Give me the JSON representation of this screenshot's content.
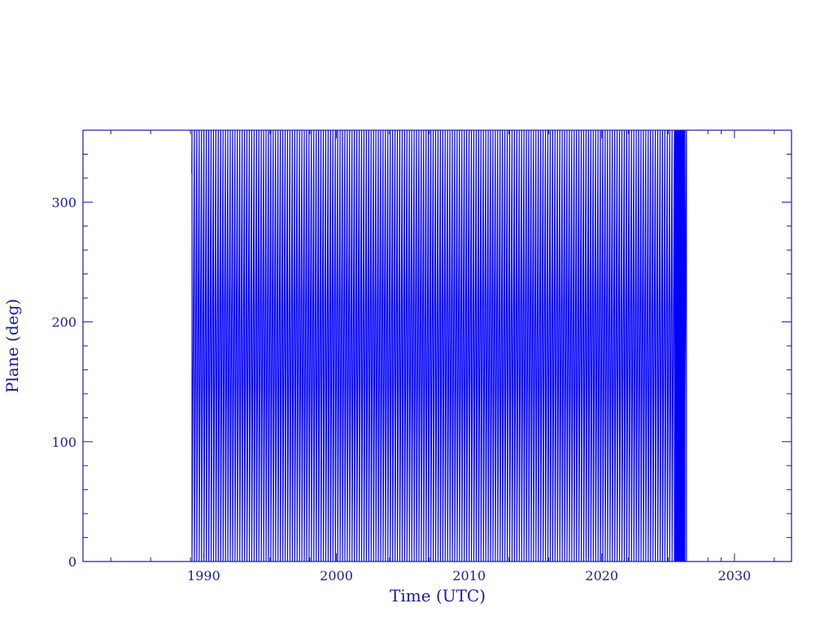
{
  "chart_data": {
    "type": "line",
    "title": "",
    "xlabel": "Time (UTC)",
    "ylabel": "Plane (deg)",
    "xlim": [
      1980.9,
      2034.3
    ],
    "ylim": [
      0,
      360
    ],
    "x_major_ticks": [
      1990,
      2000,
      2010,
      2020,
      2030
    ],
    "x_tick_labels": [
      "1990",
      "2000",
      "2010",
      "2020",
      "2030"
    ],
    "x_minor_ticks": [
      1983,
      1986,
      1989,
      1992,
      1995,
      1998,
      2001,
      2004,
      2007,
      2010,
      2013,
      2016,
      2019,
      2022,
      2025,
      2028,
      2029,
      2033
    ],
    "y_major_ticks": [
      0,
      100,
      200,
      300
    ],
    "y_tick_labels": [
      "0",
      "100",
      "200",
      "300"
    ],
    "y_minor_step": 20,
    "grid": false,
    "series": [
      {
        "pattern": "sawtooth wrapping 0-360 deg",
        "x_start": 1989.1,
        "x_end": 2026.3,
        "cycle_years": 0.18,
        "dense_segment_start": 2025.5
      }
    ],
    "colors": {
      "axes": "#1a1aa6",
      "series": "#0000ff"
    }
  }
}
